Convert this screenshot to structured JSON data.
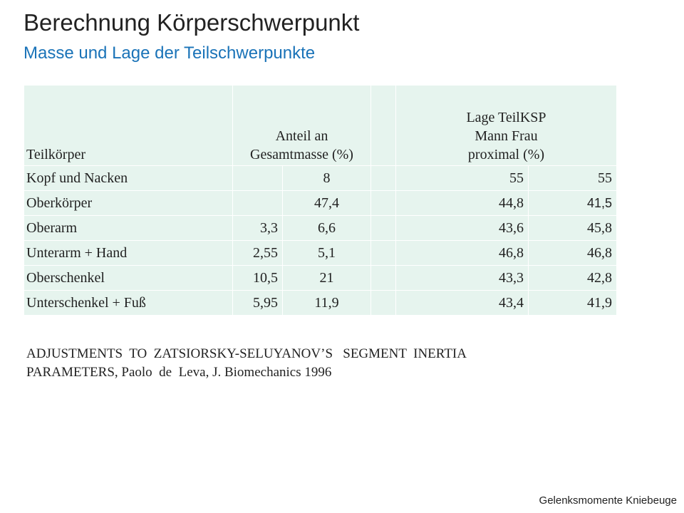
{
  "title": "Berechnung Körperschwerpunkt",
  "subtitle": "Masse und Lage der Teilschwerpunkte",
  "table": {
    "header": {
      "col1": "Teilkörper",
      "col2_line1": "Anteil an",
      "col2_line2": "Gesamtmasse (%)",
      "col4_line1": "Lage TeilKSP",
      "col4_line2": "Mann   Frau",
      "col4_line3": "proximal (%)"
    },
    "rows": [
      {
        "name": "Kopf und Nacken",
        "half": "",
        "mass": "8",
        "mann": "55",
        "frau": "55"
      },
      {
        "name": "Oberkörper",
        "half": "",
        "mass": "47,4",
        "mann": "44,8",
        "frau": "41,5"
      },
      {
        "name": "Oberarm",
        "half": "3,3",
        "mass": "6,6",
        "mann": "43,6",
        "frau": "45,8"
      },
      {
        "name": "Unterarm + Hand",
        "half": "2,55",
        "mass": "5,1",
        "mann": "46,8",
        "frau": "46,8"
      },
      {
        "name": "Oberschenkel",
        "half": "10,5",
        "mass": "21",
        "mann": "43,3",
        "frau": "42,8"
      },
      {
        "name": "Unterschenkel + Fuß",
        "half": "5,95",
        "mass": "11,9",
        "mann": "43,4",
        "frau": "41,9"
      }
    ]
  },
  "reference": {
    "line1": "ADJUSTMENTS  TO  ZATSIORSKY-SELUYANOV’S   SEGMENT  INERTIA",
    "line2": "PARAMETERS, Paolo  de  Leva, J. Biomechanics 1996"
  },
  "footer": "Gelenksmomente Kniebeuge",
  "colors": {
    "title": "#222222",
    "subtitle": "#1a73b8",
    "table_cell_bg": "#e6f4ee"
  }
}
